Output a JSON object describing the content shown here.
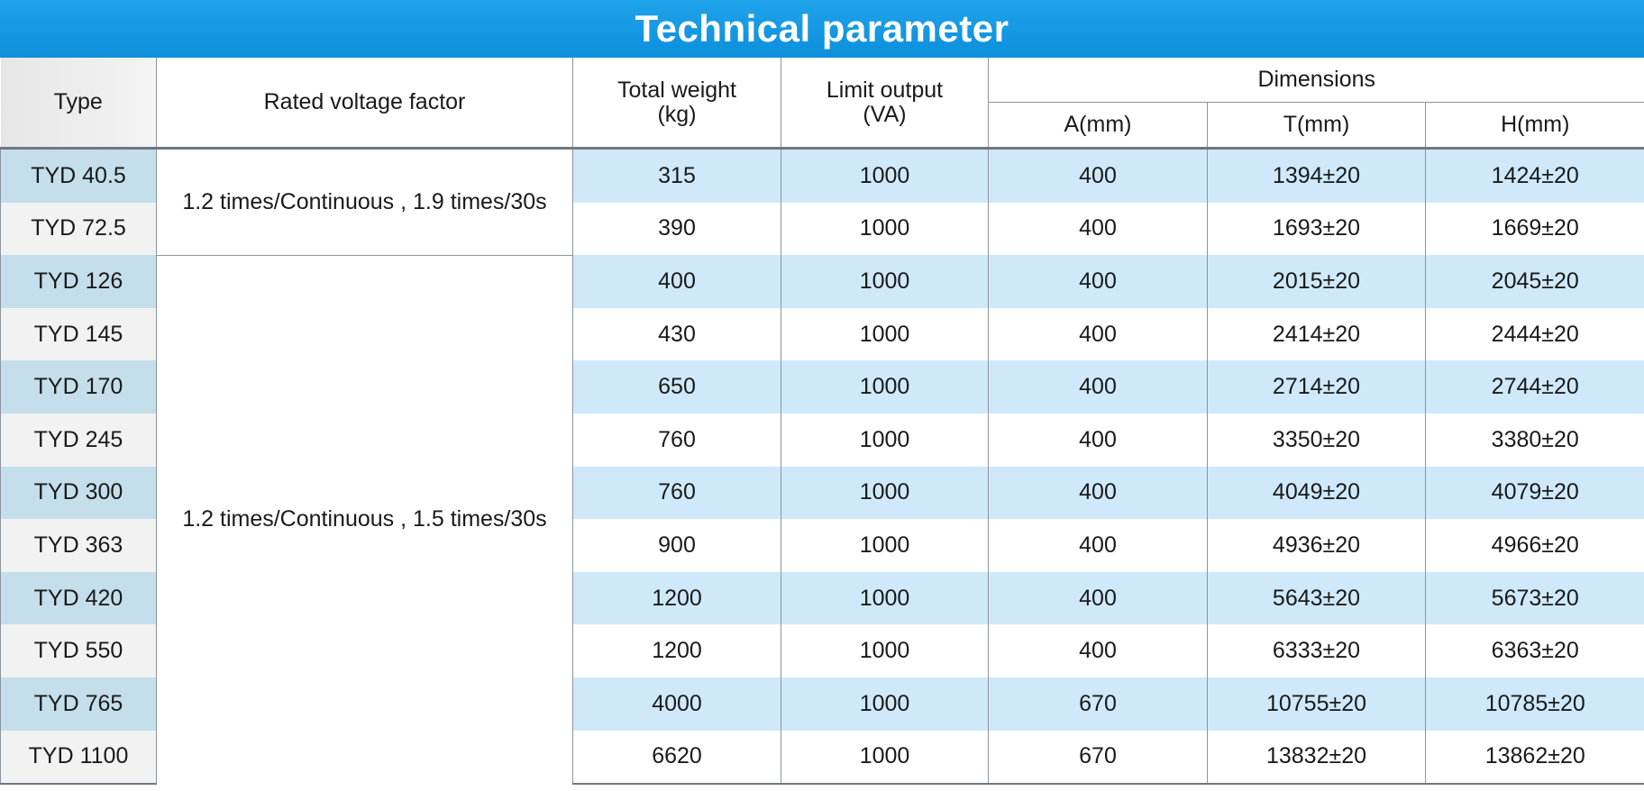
{
  "title": "Technical parameter",
  "headers": {
    "type": "Type",
    "factor": "Rated voltage factor",
    "weight": "Total weight\n(kg)",
    "output": "Limit output\n(VA)",
    "dimensions": "Dimensions",
    "a": "A(mm)",
    "t": "T(mm)",
    "h": "H(mm)"
  },
  "factors": [
    "1.2 times/Continuous , 1.9 times/30s",
    "1.2 times/Continuous , 1.5 times/30s"
  ],
  "rows": [
    {
      "type": "TYD 40.5",
      "weight": "315",
      "output": "1000",
      "a": "400",
      "t": "1394±20",
      "h": "1424±20"
    },
    {
      "type": "TYD 72.5",
      "weight": "390",
      "output": "1000",
      "a": "400",
      "t": "1693±20",
      "h": "1669±20"
    },
    {
      "type": "TYD 126",
      "weight": "400",
      "output": "1000",
      "a": "400",
      "t": "2015±20",
      "h": "2045±20"
    },
    {
      "type": "TYD 145",
      "weight": "430",
      "output": "1000",
      "a": "400",
      "t": "2414±20",
      "h": "2444±20"
    },
    {
      "type": "TYD 170",
      "weight": "650",
      "output": "1000",
      "a": "400",
      "t": "2714±20",
      "h": "2744±20"
    },
    {
      "type": "TYD 245",
      "weight": "760",
      "output": "1000",
      "a": "400",
      "t": "3350±20",
      "h": "3380±20"
    },
    {
      "type": "TYD 300",
      "weight": "760",
      "output": "1000",
      "a": "400",
      "t": "4049±20",
      "h": "4079±20"
    },
    {
      "type": "TYD 363",
      "weight": "900",
      "output": "1000",
      "a": "400",
      "t": "4936±20",
      "h": "4966±20"
    },
    {
      "type": "TYD 420",
      "weight": "1200",
      "output": "1000",
      "a": "400",
      "t": "5643±20",
      "h": "5673±20"
    },
    {
      "type": "TYD 550",
      "weight": "1200",
      "output": "1000",
      "a": "400",
      "t": "6333±20",
      "h": "6363±20"
    },
    {
      "type": "TYD 765",
      "weight": "4000",
      "output": "1000",
      "a": "670",
      "t": "10755±20",
      "h": "10785±20"
    },
    {
      "type": "TYD 1100",
      "weight": "6620",
      "output": "1000",
      "a": "670",
      "t": "13832±20",
      "h": "13862±20"
    }
  ]
}
